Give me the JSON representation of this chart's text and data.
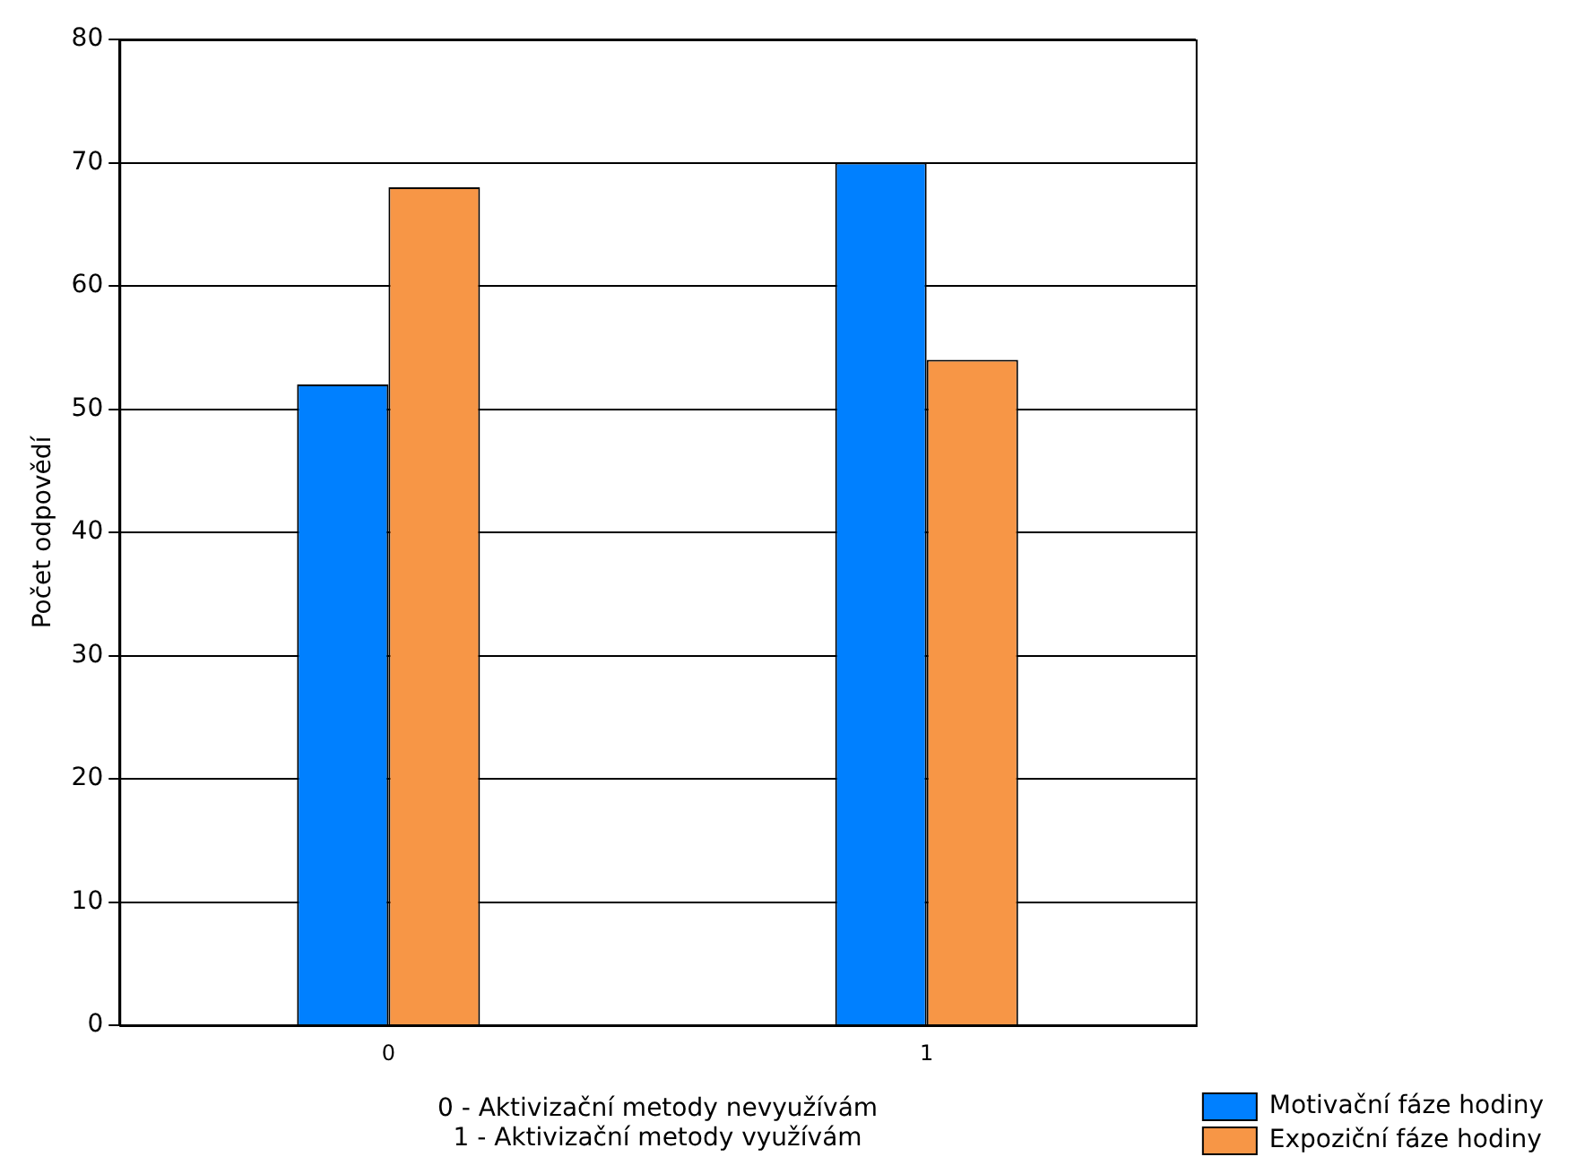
{
  "chart_data": {
    "type": "bar",
    "ylabel": "Počet odpovědí",
    "xlabel": "0 - Aktivizační metody nevyužívám\n1 - Aktivizační metody využívám",
    "categories": [
      "0",
      "1"
    ],
    "series": [
      {
        "name": "Motivační fáze hodiny",
        "color": "#0080ff",
        "values": [
          52,
          70
        ]
      },
      {
        "name": "Expoziční fáze hodiny",
        "color": "#f79646",
        "values": [
          68,
          54
        ]
      }
    ],
    "ylim": [
      0,
      80
    ],
    "yticks": [
      0,
      10,
      20,
      30,
      40,
      50,
      60,
      70,
      80
    ],
    "grid": "y",
    "legend": "bottom right"
  }
}
